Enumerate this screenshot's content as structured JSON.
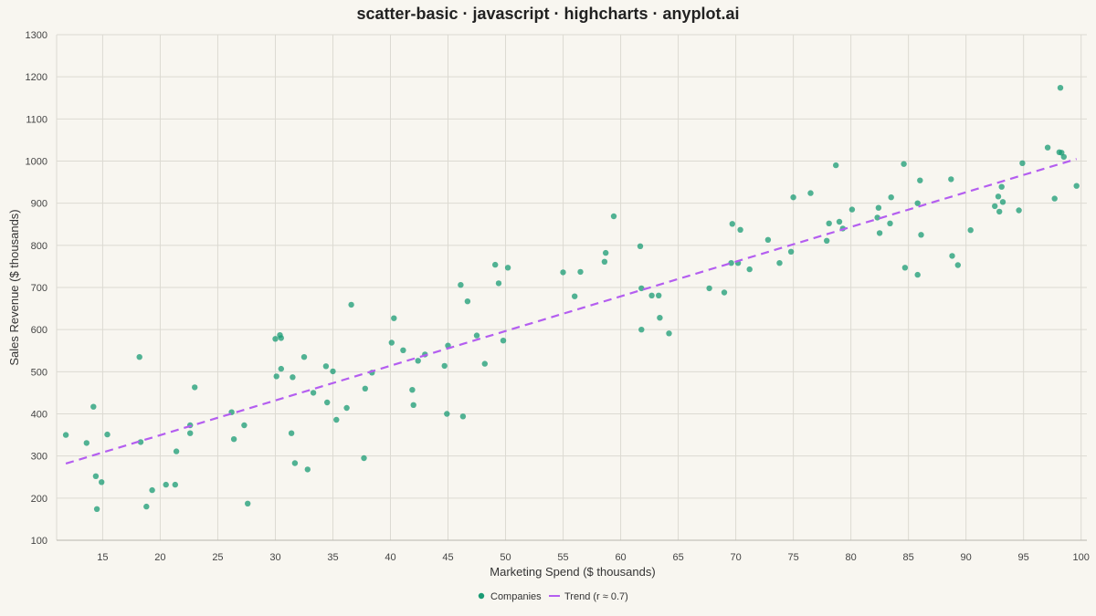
{
  "chart_data": {
    "type": "scatter",
    "title": "scatter-basic · javascript · highcharts · anyplot.ai",
    "xlabel": "Marketing Spend ($ thousands)",
    "ylabel": "Sales Revenue ($ thousands)",
    "xlim": [
      11,
      100.5
    ],
    "ylim": [
      100,
      1300
    ],
    "x_ticks": [
      "15",
      "20",
      "25",
      "30",
      "35",
      "40",
      "45",
      "50",
      "55",
      "60",
      "65",
      "70",
      "75",
      "80",
      "85",
      "90",
      "95",
      "100"
    ],
    "y_ticks": [
      "100",
      "200",
      "300",
      "400",
      "500",
      "600",
      "700",
      "800",
      "900",
      "1000",
      "1100",
      "1200",
      "1300"
    ],
    "grid": true,
    "legend_position": "bottom-center",
    "series": [
      {
        "name": "Companies",
        "type": "scatter",
        "color": "#1a9b74",
        "points": [
          [
            11.8,
            350
          ],
          [
            13.6,
            331
          ],
          [
            14.2,
            417
          ],
          [
            14.4,
            252
          ],
          [
            14.5,
            174
          ],
          [
            14.9,
            238
          ],
          [
            15.4,
            351
          ],
          [
            18.2,
            535
          ],
          [
            18.3,
            333
          ],
          [
            18.8,
            180
          ],
          [
            19.3,
            219
          ],
          [
            20.5,
            232
          ],
          [
            21.3,
            232
          ],
          [
            21.4,
            311
          ],
          [
            22.6,
            354
          ],
          [
            22.6,
            373
          ],
          [
            23.0,
            463
          ],
          [
            26.2,
            404
          ],
          [
            26.4,
            340
          ],
          [
            27.3,
            373
          ],
          [
            27.6,
            187
          ],
          [
            30.0,
            578
          ],
          [
            30.1,
            489
          ],
          [
            30.4,
            587
          ],
          [
            30.5,
            580
          ],
          [
            30.5,
            507
          ],
          [
            31.4,
            354
          ],
          [
            31.5,
            487
          ],
          [
            31.7,
            283
          ],
          [
            32.5,
            535
          ],
          [
            32.8,
            268
          ],
          [
            33.3,
            450
          ],
          [
            34.4,
            513
          ],
          [
            34.5,
            427
          ],
          [
            35.0,
            501
          ],
          [
            35.3,
            386
          ],
          [
            36.2,
            414
          ],
          [
            36.6,
            659
          ],
          [
            37.7,
            295
          ],
          [
            37.8,
            460
          ],
          [
            38.4,
            498
          ],
          [
            40.1,
            569
          ],
          [
            40.3,
            627
          ],
          [
            41.1,
            551
          ],
          [
            41.9,
            457
          ],
          [
            42.0,
            421
          ],
          [
            42.4,
            526
          ],
          [
            43.0,
            541
          ],
          [
            44.7,
            514
          ],
          [
            44.9,
            400
          ],
          [
            45.0,
            562
          ],
          [
            46.1,
            706
          ],
          [
            46.3,
            394
          ],
          [
            46.7,
            667
          ],
          [
            47.5,
            586
          ],
          [
            48.2,
            519
          ],
          [
            49.1,
            754
          ],
          [
            49.4,
            710
          ],
          [
            49.8,
            574
          ],
          [
            50.2,
            747
          ],
          [
            55.0,
            736
          ],
          [
            56.0,
            679
          ],
          [
            56.5,
            737
          ],
          [
            58.6,
            761
          ],
          [
            58.7,
            782
          ],
          [
            59.4,
            869
          ],
          [
            61.7,
            798
          ],
          [
            61.8,
            698
          ],
          [
            61.8,
            600
          ],
          [
            62.7,
            681
          ],
          [
            63.3,
            681
          ],
          [
            63.4,
            628
          ],
          [
            64.2,
            591
          ],
          [
            67.7,
            698
          ],
          [
            69.0,
            688
          ],
          [
            69.6,
            758
          ],
          [
            69.7,
            851
          ],
          [
            70.2,
            758
          ],
          [
            70.4,
            837
          ],
          [
            71.2,
            743
          ],
          [
            72.8,
            813
          ],
          [
            73.8,
            758
          ],
          [
            74.8,
            785
          ],
          [
            75.0,
            914
          ],
          [
            76.5,
            924
          ],
          [
            77.9,
            811
          ],
          [
            78.1,
            852
          ],
          [
            78.7,
            990
          ],
          [
            79.0,
            856
          ],
          [
            79.3,
            840
          ],
          [
            80.1,
            885
          ],
          [
            82.3,
            866
          ],
          [
            82.4,
            889
          ],
          [
            82.5,
            829
          ],
          [
            83.4,
            852
          ],
          [
            83.5,
            914
          ],
          [
            84.6,
            993
          ],
          [
            84.7,
            747
          ],
          [
            85.8,
            730
          ],
          [
            85.8,
            900
          ],
          [
            86.0,
            954
          ],
          [
            86.1,
            825
          ],
          [
            88.7,
            957
          ],
          [
            88.8,
            775
          ],
          [
            89.3,
            753
          ],
          [
            90.4,
            836
          ],
          [
            92.5,
            893
          ],
          [
            92.8,
            916
          ],
          [
            92.9,
            880
          ],
          [
            93.1,
            939
          ],
          [
            93.2,
            903
          ],
          [
            94.6,
            883
          ],
          [
            94.9,
            995
          ],
          [
            97.1,
            1032
          ],
          [
            97.7,
            911
          ],
          [
            98.1,
            1021
          ],
          [
            98.2,
            1174
          ],
          [
            98.3,
            1020
          ],
          [
            98.5,
            1010
          ],
          [
            99.6,
            941
          ]
        ]
      },
      {
        "name": "Trend (r ≈ 0.7)",
        "type": "line",
        "style": "dashed",
        "color": "#b45ef0",
        "points": [
          [
            11.8,
            282
          ],
          [
            99.6,
            1005
          ]
        ]
      }
    ]
  }
}
